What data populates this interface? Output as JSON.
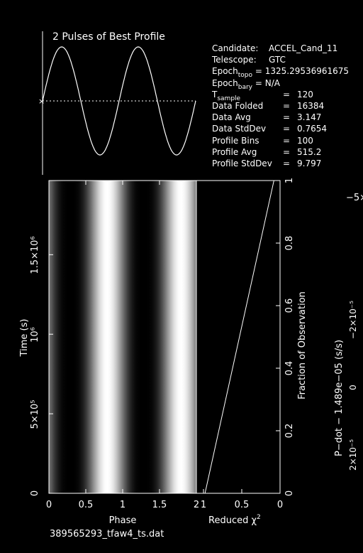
{
  "profile_title": "2 Pulses of Best Profile",
  "file_name": "389565293_tfaw4_ts.dat",
  "info": {
    "candidate_label": "Candidate:",
    "candidate": "ACCEL_Cand_11",
    "telescope_label": "Telescope:",
    "telescope": "GTC",
    "epoch_topo_label": "Epoch",
    "epoch_topo_sub": "topo",
    "epoch_topo": "1325.29536961675",
    "epoch_bary_label": "Epoch",
    "epoch_bary_sub": "bary",
    "epoch_bary": "N/A",
    "tsample_label": "T",
    "tsample_sub": "sample",
    "tsample": "120",
    "data_folded_label": "Data Folded",
    "data_folded": "16384",
    "data_avg_label": "Data Avg",
    "data_avg": "3.147",
    "data_std_label": "Data StdDev",
    "data_std": "0.7654",
    "prof_bins_label": "Profile Bins",
    "prof_bins": "100",
    "prof_avg_label": "Profile Avg",
    "prof_avg": "515.2",
    "prof_std_label": "Profile StdDev",
    "prof_std": "9.797",
    "eq": "="
  },
  "chart_data": [
    {
      "type": "line",
      "name": "profile",
      "title": "2 Pulses of Best Profile",
      "x_range": [
        0,
        2
      ],
      "values": [
        0.0,
        0.59,
        0.95,
        0.95,
        0.59,
        0.0,
        -0.59,
        -0.95,
        -0.95,
        -0.59,
        0.0
      ],
      "marker_symbol": "×"
    },
    {
      "type": "heatmap",
      "name": "phase-time",
      "xlabel": "Phase",
      "ylabel": "Time (s)",
      "xlim": [
        0,
        2
      ],
      "ylim": [
        0,
        1966080
      ],
      "x_ticks": [
        "0",
        "0.5",
        "1",
        "1.5",
        "2"
      ],
      "y_ticks": [
        "0",
        "5×10⁵",
        "10⁶",
        "1.5×10⁶"
      ],
      "y_tick_values": [
        0,
        500000,
        1000000,
        1500000
      ],
      "right_ylabel": "Fraction of Observation",
      "right_ticks": [
        "0",
        "0.2",
        "0.4",
        "0.6",
        "0.8",
        "1"
      ],
      "bright_phases": [
        0.79,
        1.79
      ],
      "dark_phases": [
        0.29,
        1.29
      ]
    },
    {
      "type": "line",
      "name": "reduced-chi2",
      "xlabel": "Reduced χ²",
      "x_ticks": [
        "1",
        "0.5",
        "0"
      ],
      "points": [
        [
          0.98,
          0.0
        ],
        [
          0.08,
          1.0
        ]
      ]
    },
    {
      "type": "line",
      "name": "pdot",
      "ylabel": "P−dot − 1.489e−05 (s/s)",
      "y_ticks": [
        "2×10⁻⁵",
        "0",
        "−2×10⁻⁵"
      ],
      "top_tick": "−5×"
    }
  ]
}
